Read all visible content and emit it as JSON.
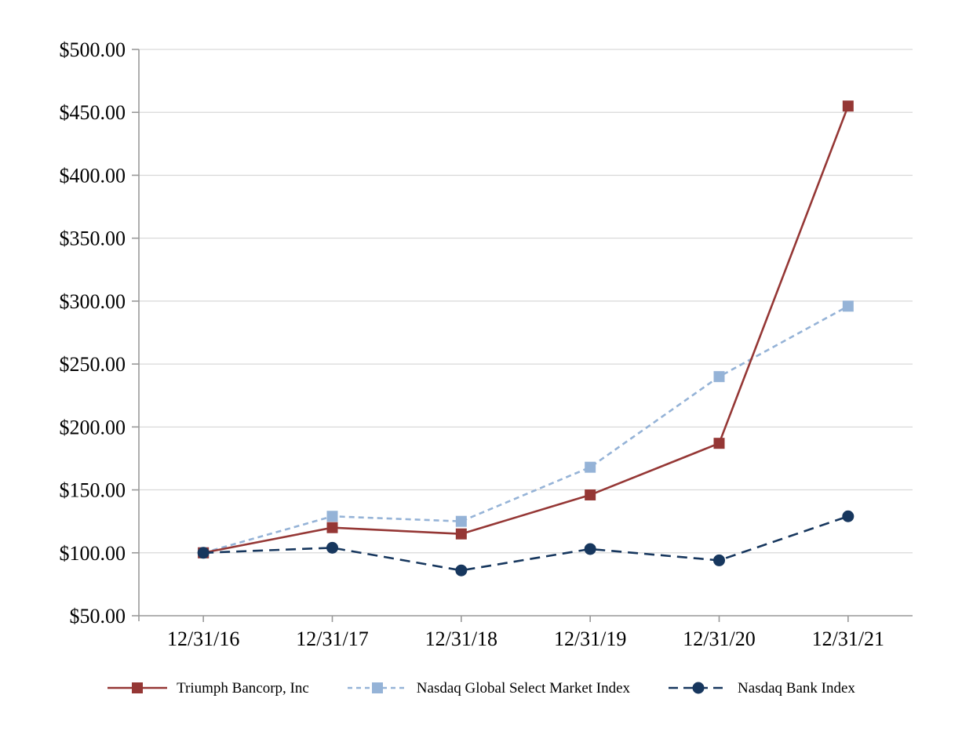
{
  "chart_data": {
    "type": "line",
    "title": "",
    "xlabel": "",
    "ylabel": "",
    "categories": [
      "12/31/16",
      "12/31/17",
      "12/31/18",
      "12/31/19",
      "12/31/20",
      "12/31/21"
    ],
    "series": [
      {
        "name": "Triumph Bancorp, Inc",
        "values": [
          100,
          120,
          115,
          146,
          187,
          455
        ],
        "color": "#953735",
        "line_style": "solid",
        "marker": "square"
      },
      {
        "name": "Nasdaq Global Select Market Index",
        "values": [
          100,
          129,
          125,
          168,
          240,
          296
        ],
        "color": "#95B3D7",
        "line_style": "dashed-short",
        "marker": "square"
      },
      {
        "name": "Nasdaq Bank Index",
        "values": [
          100,
          104,
          86,
          103,
          94,
          129
        ],
        "color": "#17375E",
        "line_style": "dashed-long",
        "marker": "circle"
      }
    ],
    "ylim": [
      50,
      500
    ],
    "ytick_step": 50,
    "yticks": [
      {
        "value": 50,
        "label": "$50.00"
      },
      {
        "value": 100,
        "label": "$100.00"
      },
      {
        "value": 150,
        "label": "$150.00"
      },
      {
        "value": 200,
        "label": "$200.00"
      },
      {
        "value": 250,
        "label": "$250.00"
      },
      {
        "value": 300,
        "label": "$300.00"
      },
      {
        "value": 350,
        "label": "$350.00"
      },
      {
        "value": 400,
        "label": "$400.00"
      },
      {
        "value": 450,
        "label": "$450.00"
      },
      {
        "value": 500,
        "label": "$500.00"
      }
    ],
    "grid": "horizontal",
    "grid_color": "#D9D9D9",
    "axis_color": "#999999",
    "text_color": "#000000",
    "legend_position": "bottom"
  }
}
